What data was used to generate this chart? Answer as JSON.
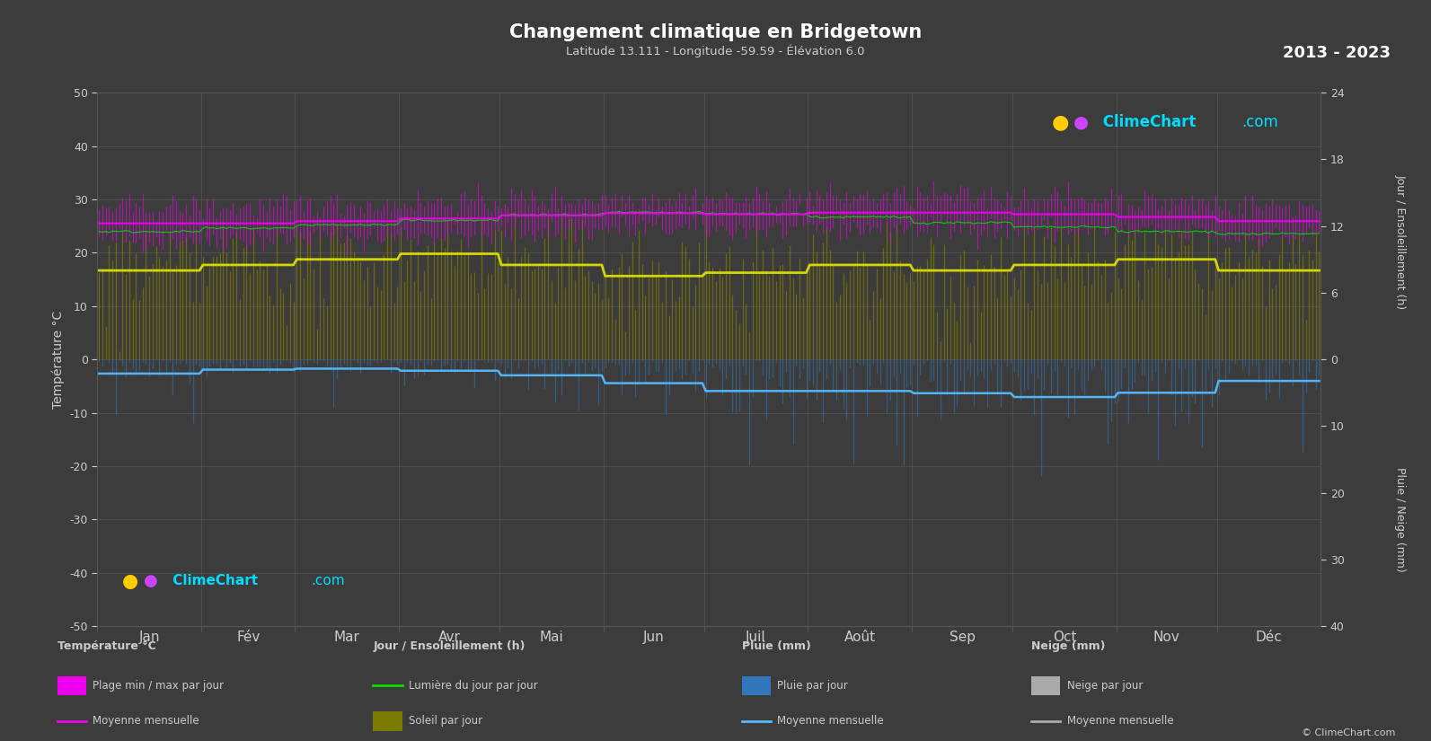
{
  "title": "Changement climatique en Bridgetown",
  "subtitle": "Latitude 13.111 - Longitude -59.59 - Élévation 6.0",
  "year_range": "2013 - 2023",
  "background_color": "#3c3c3c",
  "plot_bg_color": "#3c3c3c",
  "text_color": "#cccccc",
  "grid_color": "#555555",
  "months": [
    "Jan",
    "Fév",
    "Mar",
    "Avr",
    "Mai",
    "Jun",
    "Juil",
    "Août",
    "Sep",
    "Oct",
    "Nov",
    "Déc"
  ],
  "days_in_month": [
    31,
    28,
    31,
    30,
    31,
    30,
    31,
    31,
    30,
    31,
    30,
    31
  ],
  "temp_min_monthly": [
    22.5,
    22.5,
    22.8,
    23.2,
    24.0,
    24.5,
    24.3,
    24.5,
    24.5,
    24.2,
    23.8,
    23.0
  ],
  "temp_max_monthly": [
    28.5,
    28.5,
    29.0,
    29.5,
    30.0,
    30.2,
    30.0,
    30.5,
    30.5,
    30.2,
    29.5,
    28.8
  ],
  "temp_mean_monthly": [
    25.5,
    25.5,
    25.9,
    26.4,
    27.0,
    27.4,
    27.2,
    27.5,
    27.5,
    27.2,
    26.7,
    25.9
  ],
  "daylight_monthly": [
    11.5,
    11.8,
    12.1,
    12.5,
    13.0,
    13.2,
    13.1,
    12.8,
    12.3,
    11.9,
    11.5,
    11.3
  ],
  "sunshine_monthly": [
    8.0,
    8.5,
    9.0,
    9.5,
    8.5,
    7.5,
    7.8,
    8.5,
    8.0,
    8.5,
    9.0,
    8.0
  ],
  "rain_monthly_mm": [
    66,
    43,
    43,
    51,
    74,
    107,
    147,
    147,
    152,
    175,
    150,
    100
  ],
  "temp_band_color": "#ee00ee",
  "daylight_color": "#00dd00",
  "sunshine_band_color": "#7a7a00",
  "sunshine_mean_color": "#dddd00",
  "rain_bar_color": "#3377bb",
  "rain_mean_color": "#55bbff",
  "ylim_temp": [
    -50,
    50
  ],
  "sun_scale": 24,
  "rain_scale": 40,
  "logo_color": "#00ddff",
  "copyright_text": "© ClimeChart.com"
}
